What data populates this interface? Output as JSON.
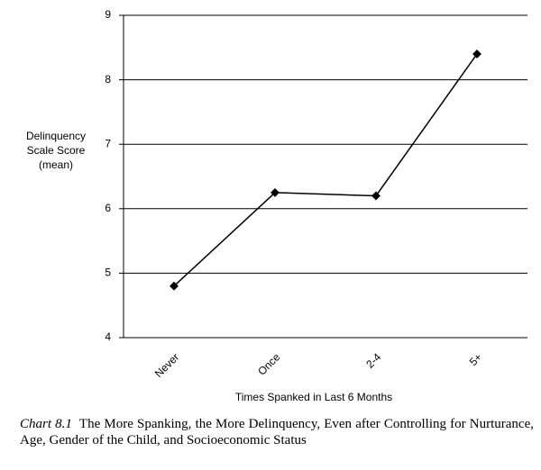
{
  "chart_data": {
    "type": "line",
    "y_label": [
      "Delinquency",
      "Scale Score",
      "(mean)"
    ],
    "x_label": "Times Spanked in Last 6 Months",
    "categories": [
      "Never",
      "Once",
      "2-4",
      "5+"
    ],
    "values": [
      4.8,
      6.25,
      6.2,
      8.4
    ],
    "color": "#000000",
    "ylim": [
      4,
      9
    ],
    "yticks": [
      4,
      5,
      6,
      7,
      8,
      9
    ],
    "grid": true
  },
  "caption": {
    "label": "Chart 8.1",
    "text": "The More Spanking, the More Delinquency, Even after Controlling for Nurturance, Age, Gender of the Child, and Socioeconomic Status"
  }
}
